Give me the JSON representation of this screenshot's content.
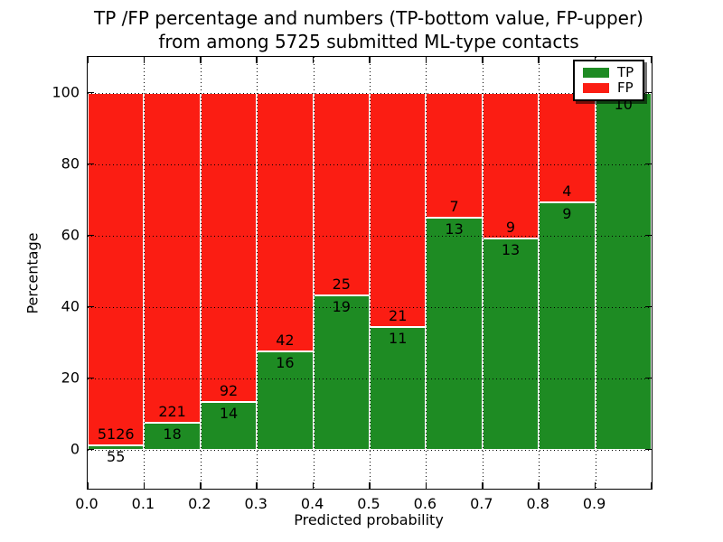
{
  "chart_data": {
    "type": "bar",
    "stacked": true,
    "title": "TP /FP percentage and numbers (TP-bottom value, FP-upper)\nfrom among 5725 submitted ML-type contacts",
    "title_lines": [
      "TP /FP percentage and numbers (TP-bottom value, FP-upper)",
      "from among 5725 submitted ML-type contacts"
    ],
    "total_submitted": 5725,
    "xlabel": "Predicted probability",
    "ylabel": "Percentage",
    "xlim": [
      0.0,
      1.0
    ],
    "ylim": [
      -11,
      110
    ],
    "x_tick_labels": [
      "0.0",
      "0.1",
      "0.2",
      "0.3",
      "0.4",
      "0.5",
      "0.6",
      "0.7",
      "0.8",
      "0.9"
    ],
    "x_tick_values": [
      0.0,
      0.1,
      0.2,
      0.3,
      0.4,
      0.5,
      0.6,
      0.7,
      0.8,
      0.9,
      1.0
    ],
    "y_ticks": [
      0,
      20,
      40,
      60,
      80,
      100
    ],
    "grid": true,
    "grid_style": "dotted",
    "bin_width": 0.1,
    "bins": [
      {
        "x0": 0.0,
        "x1": 0.1,
        "tp": 55,
        "fp": 5126,
        "tp_pct": 1.1
      },
      {
        "x0": 0.1,
        "x1": 0.2,
        "tp": 18,
        "fp": 221,
        "tp_pct": 7.5
      },
      {
        "x0": 0.2,
        "x1": 0.3,
        "tp": 14,
        "fp": 92,
        "tp_pct": 13.2
      },
      {
        "x0": 0.3,
        "x1": 0.4,
        "tp": 16,
        "fp": 42,
        "tp_pct": 27.6
      },
      {
        "x0": 0.4,
        "x1": 0.5,
        "tp": 19,
        "fp": 25,
        "tp_pct": 43.2
      },
      {
        "x0": 0.5,
        "x1": 0.6,
        "tp": 11,
        "fp": 21,
        "tp_pct": 34.4
      },
      {
        "x0": 0.6,
        "x1": 0.7,
        "tp": 13,
        "fp": 7,
        "tp_pct": 65.0
      },
      {
        "x0": 0.7,
        "x1": 0.8,
        "tp": 13,
        "fp": 9,
        "tp_pct": 59.1
      },
      {
        "x0": 0.8,
        "x1": 0.9,
        "tp": 9,
        "fp": 4,
        "tp_pct": 69.2
      },
      {
        "x0": 0.9,
        "x1": 1.0,
        "tp": 10,
        "fp": 0,
        "tp_pct": 100.0
      }
    ],
    "colors": {
      "tp": "#1e8b23",
      "fp": "#fb1d13",
      "bar_edge": "#ffffff",
      "grid": "#000000",
      "text": "#000000",
      "background": "#ffffff"
    },
    "legend": {
      "position": "upper right",
      "entries": [
        {
          "label": "TP",
          "color": "#1e8b23"
        },
        {
          "label": "FP",
          "color": "#fb1d13"
        }
      ]
    }
  }
}
